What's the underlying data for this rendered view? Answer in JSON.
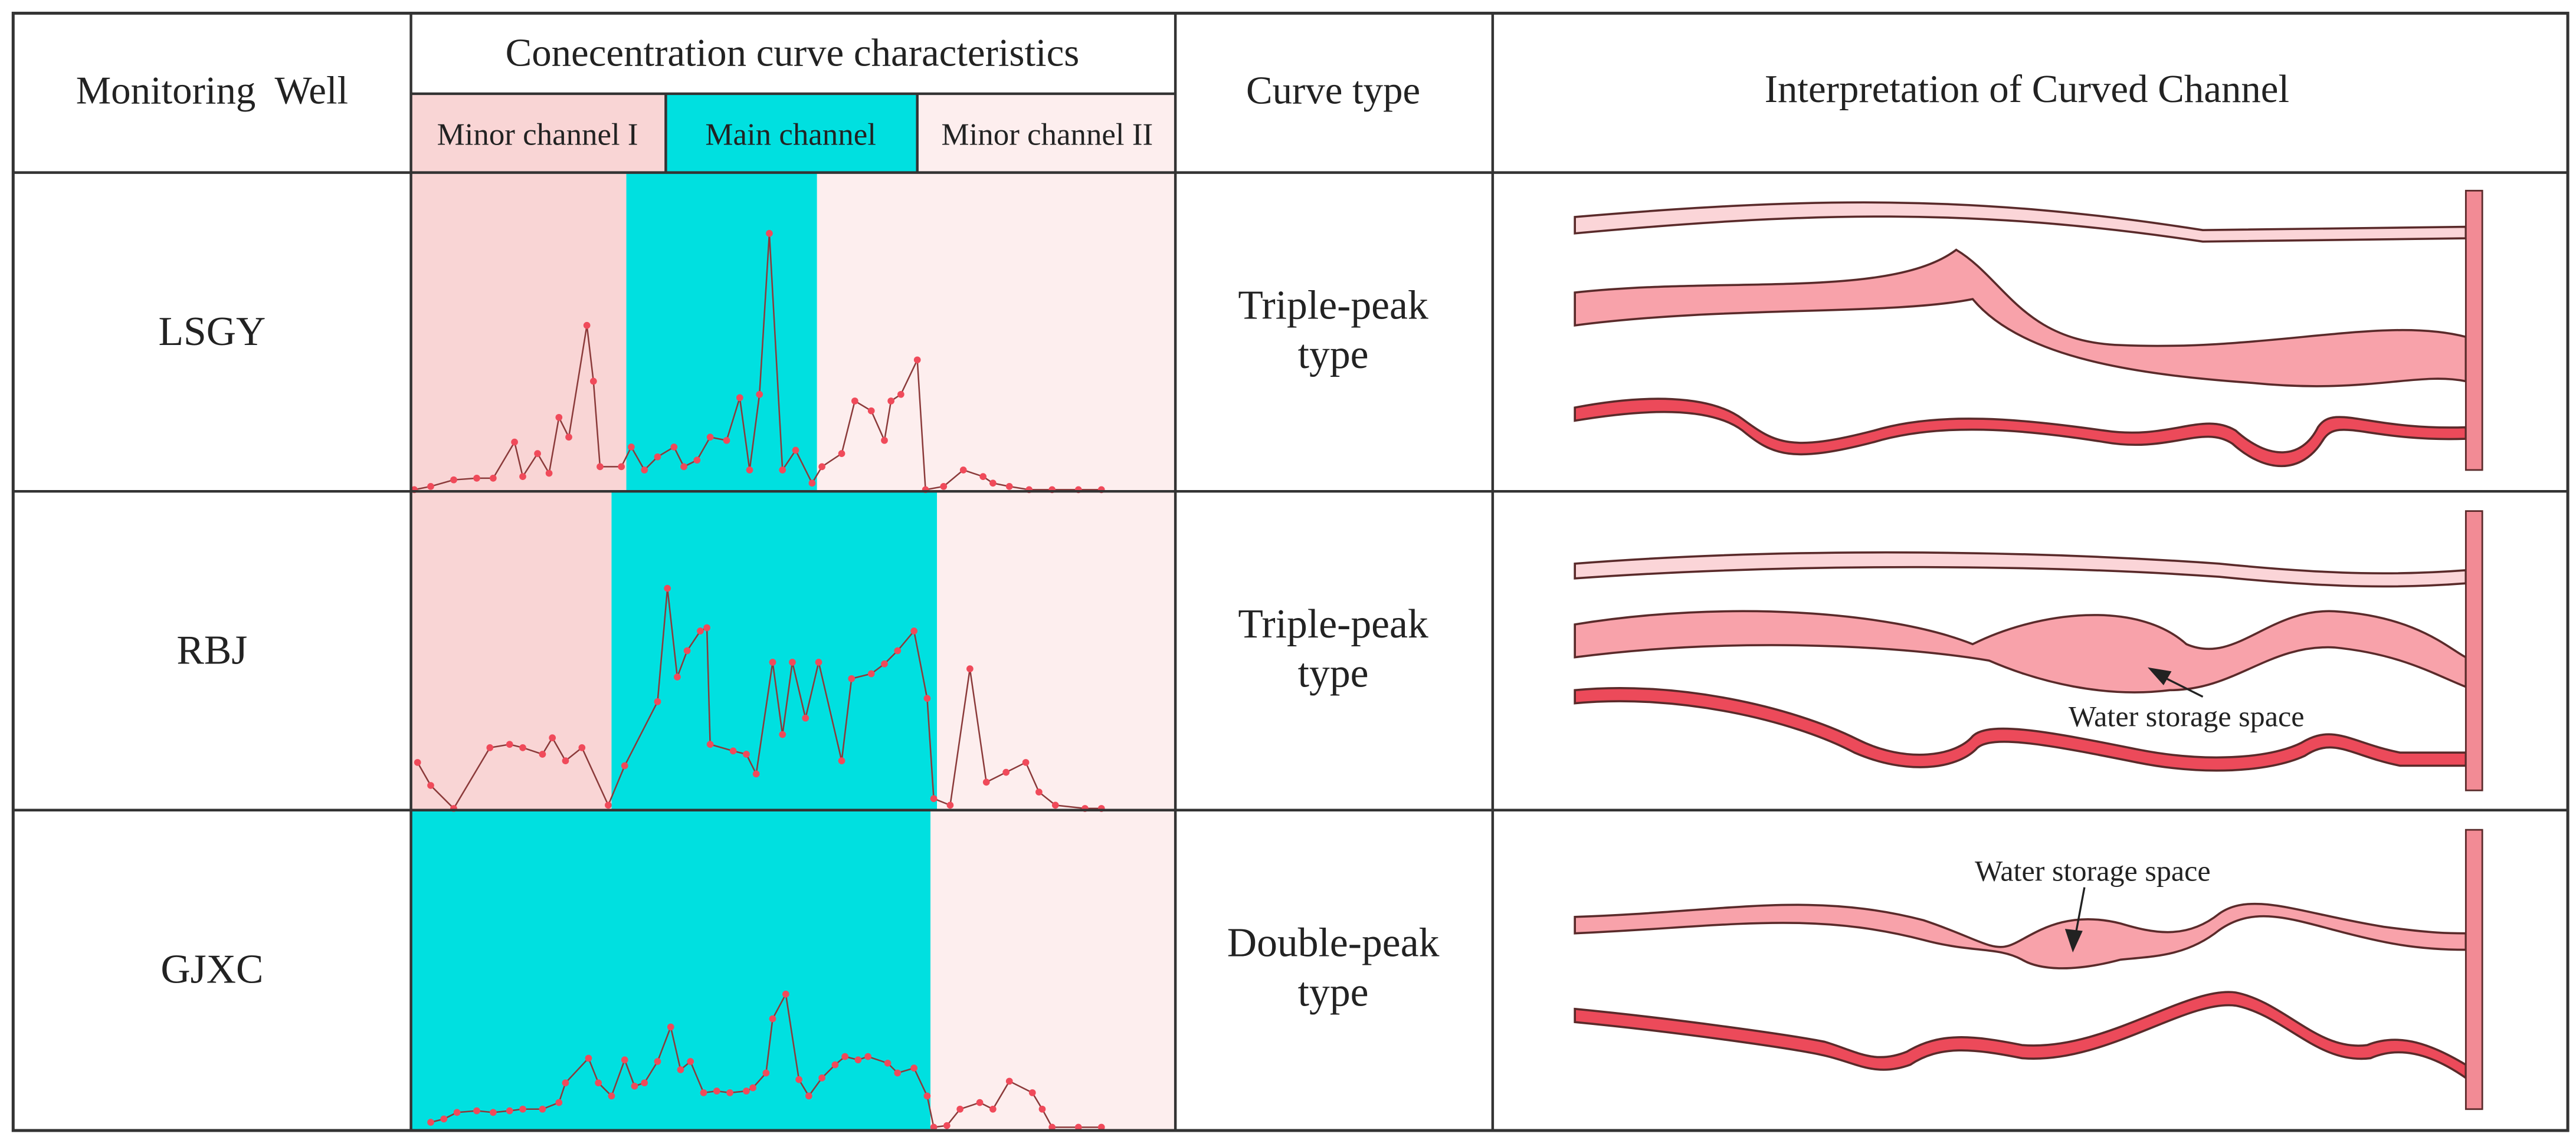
{
  "header": {
    "well": "Monitoring  Well",
    "curve": "Conecentration curve characteristics",
    "minor1": "Minor channel I",
    "main": "Main channel",
    "minor2": "Minor channel II",
    "type": "Curve type",
    "interpretation": "Interpretation of Curved Channel"
  },
  "rows": [
    {
      "well": "LSGY",
      "type": [
        "Triple-peak",
        "type"
      ]
    },
    {
      "well": "RBJ",
      "type": [
        "Triple-peak",
        "type"
      ]
    },
    {
      "well": "GJXC",
      "type": [
        "Double-peak",
        "type"
      ]
    }
  ],
  "annotations": [
    "Water storage space",
    "Water storage space"
  ]
}
